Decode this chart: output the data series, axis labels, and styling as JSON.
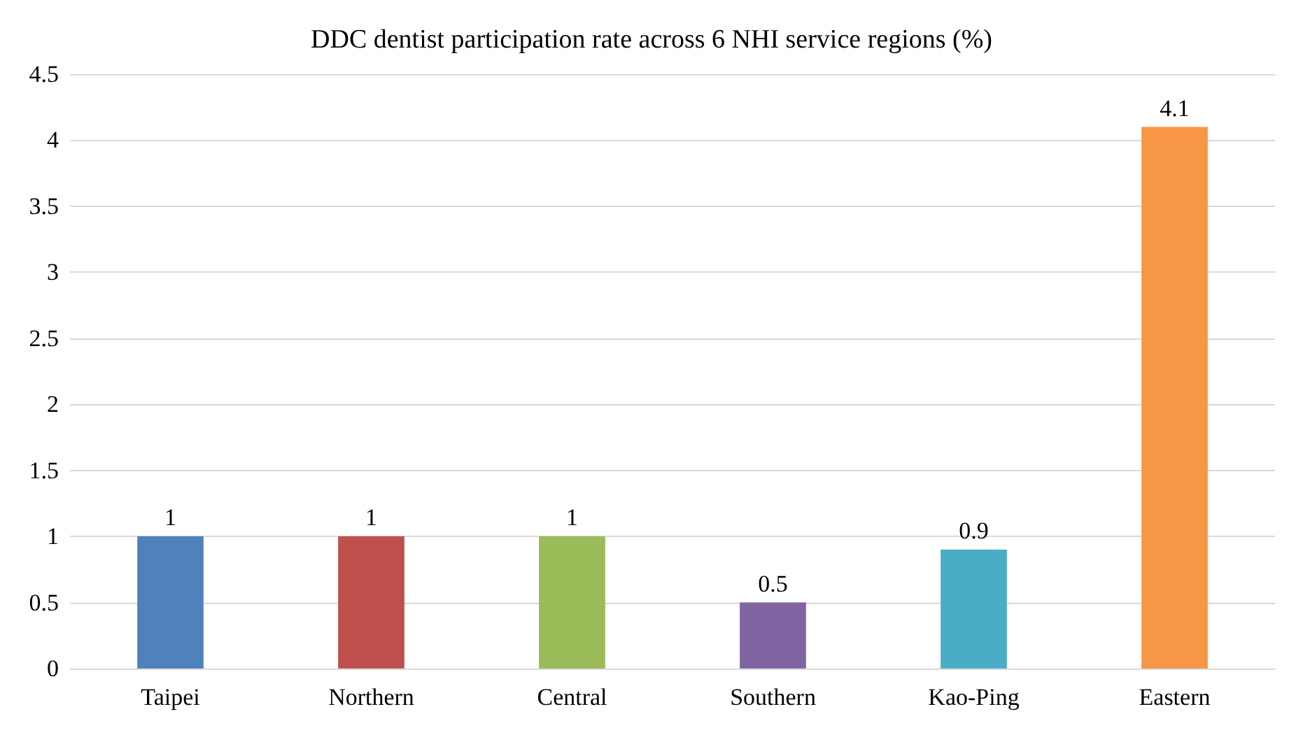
{
  "chart_data": {
    "type": "bar",
    "title": "DDC dentist participation rate across 6 NHI service regions (%)",
    "categories": [
      "Taipei",
      "Northern",
      "Central",
      "Southern",
      "Kao-Ping",
      "Eastern"
    ],
    "values": [
      1,
      1,
      1,
      0.5,
      0.9,
      4.1
    ],
    "colors": [
      "#4f81bd",
      "#c0504d",
      "#9bbb59",
      "#8064a2",
      "#4bacc6",
      "#f79646"
    ],
    "ylim": [
      0,
      4.5
    ],
    "yticks": [
      0,
      0.5,
      1,
      1.5,
      2,
      2.5,
      3,
      3.5,
      4,
      4.5
    ],
    "grid": "y",
    "data_labels": true
  }
}
